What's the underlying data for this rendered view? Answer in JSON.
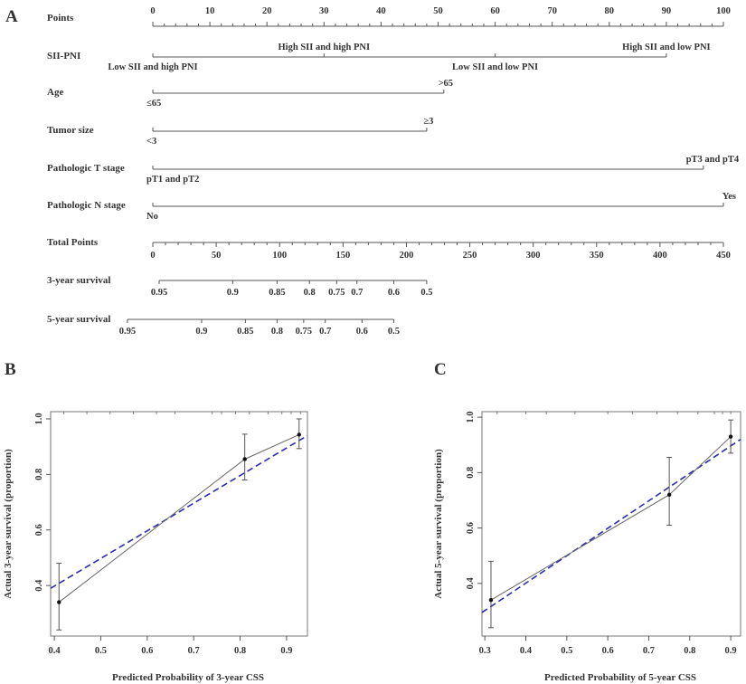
{
  "panels": {
    "a": "A",
    "b": "B",
    "c": "C"
  },
  "chart_data": [
    {
      "type": "nomogram",
      "points_axis": {
        "label": "Points",
        "range": [
          0,
          100
        ],
        "ticks": [
          0,
          10,
          20,
          30,
          40,
          50,
          60,
          70,
          80,
          90,
          100
        ]
      },
      "variables": [
        {
          "label": "SII-PNI",
          "levels": [
            {
              "name": "Low SII and high PNI",
              "points": 0,
              "side": "below"
            },
            {
              "name": "High SII and high PNI",
              "points": 30,
              "side": "above"
            },
            {
              "name": "Low SII and low PNI",
              "points": 60,
              "side": "below"
            },
            {
              "name": "High SII and low PNI",
              "points": 90,
              "side": "above"
            }
          ]
        },
        {
          "label": "Age",
          "levels": [
            {
              "name": "≤65",
              "points": 0,
              "side": "below"
            },
            {
              "name": ">65",
              "points": 51,
              "side": "above"
            }
          ]
        },
        {
          "label": "Tumor size",
          "levels": [
            {
              "name": "<3",
              "points": 0,
              "side": "below"
            },
            {
              "name": "≥3",
              "points": 48,
              "side": "above"
            }
          ]
        },
        {
          "label": "Pathologic T stage",
          "levels": [
            {
              "name": "pT1 and pT2",
              "points": 0,
              "side": "below"
            },
            {
              "name": "pT3 and pT4",
              "points": 96.5,
              "side": "above"
            }
          ]
        },
        {
          "label": "Pathologic N stage",
          "levels": [
            {
              "name": "No",
              "points": 0,
              "side": "below"
            },
            {
              "name": "Yes",
              "points": 100,
              "side": "above"
            }
          ]
        }
      ],
      "total_points_axis": {
        "label": "Total Points",
        "range": [
          0,
          450
        ],
        "ticks": [
          0,
          50,
          100,
          150,
          200,
          250,
          300,
          350,
          400,
          450
        ]
      },
      "survival_axes": [
        {
          "label": "3-year survival",
          "ticks": [
            {
              "value": "0.95",
              "total_points": 5
            },
            {
              "value": "0.9",
              "total_points": 63
            },
            {
              "value": "0.85",
              "total_points": 98
            },
            {
              "value": "0.8",
              "total_points": 123.5
            },
            {
              "value": "0.75",
              "total_points": 145
            },
            {
              "value": "0.7",
              "total_points": 161
            },
            {
              "value": "0.6",
              "total_points": 190
            },
            {
              "value": "0.5",
              "total_points": 216
            }
          ]
        },
        {
          "label": "5-year survival",
          "ticks": [
            {
              "value": "0.95",
              "total_points": -20
            },
            {
              "value": "0.9",
              "total_points": 38.5
            },
            {
              "value": "0.85",
              "total_points": 73
            },
            {
              "value": "0.8",
              "total_points": 98
            },
            {
              "value": "0.75",
              "total_points": 119
            },
            {
              "value": "0.7",
              "total_points": 136
            },
            {
              "value": "0.6",
              "total_points": 165
            },
            {
              "value": "0.5",
              "total_points": 190
            }
          ]
        }
      ]
    },
    {
      "type": "line",
      "xlabel": "Predicted Probability of 3-year CSS",
      "ylabel": "Actual 3-year survival (proportion)",
      "xlim": [
        0.392,
        0.945
      ],
      "ylim": [
        0.218,
        1.026
      ],
      "xticks": [
        0.4,
        0.5,
        0.6,
        0.7,
        0.8,
        0.9
      ],
      "yticks": [
        0.4,
        0.6,
        0.8,
        1.0
      ],
      "points": [
        {
          "x": 0.41,
          "y": 0.34,
          "lo": 0.24,
          "hi": 0.48
        },
        {
          "x": 0.81,
          "y": 0.855,
          "lo": 0.78,
          "hi": 0.945
        },
        {
          "x": 0.927,
          "y": 0.943,
          "lo": 0.893,
          "hi": 1.0
        }
      ],
      "reference_line": {
        "style": "dashed",
        "color": "#2a2ab8",
        "from": [
          0.392,
          0.39
        ],
        "to": [
          0.945,
          0.94
        ]
      },
      "rug": [
        0.42,
        0.47,
        0.52,
        0.57,
        0.62,
        0.66,
        0.74,
        0.76,
        0.79,
        0.82,
        0.86,
        0.89,
        0.91,
        0.93
      ]
    },
    {
      "type": "line",
      "xlabel": "Predicted Probability of 5-year CSS",
      "ylabel": "Actual 5-year survival (proportion)",
      "xlim": [
        0.293,
        0.924
      ],
      "ylim": [
        0.21,
        1.02
      ],
      "xticks": [
        0.3,
        0.4,
        0.5,
        0.6,
        0.7,
        0.8,
        0.9
      ],
      "yticks": [
        0.4,
        0.6,
        0.8,
        1.0
      ],
      "points": [
        {
          "x": 0.315,
          "y": 0.34,
          "lo": 0.24,
          "hi": 0.48
        },
        {
          "x": 0.75,
          "y": 0.72,
          "lo": 0.61,
          "hi": 0.855
        },
        {
          "x": 0.9,
          "y": 0.93,
          "lo": 0.87,
          "hi": 0.99
        }
      ],
      "reference_line": {
        "style": "dashed",
        "color": "#2a2ab8",
        "from": [
          0.293,
          0.295
        ],
        "to": [
          0.924,
          0.92
        ]
      },
      "rug": [
        0.33,
        0.4,
        0.45,
        0.52,
        0.6,
        0.66,
        0.72,
        0.77,
        0.82,
        0.86,
        0.88,
        0.9
      ]
    }
  ]
}
